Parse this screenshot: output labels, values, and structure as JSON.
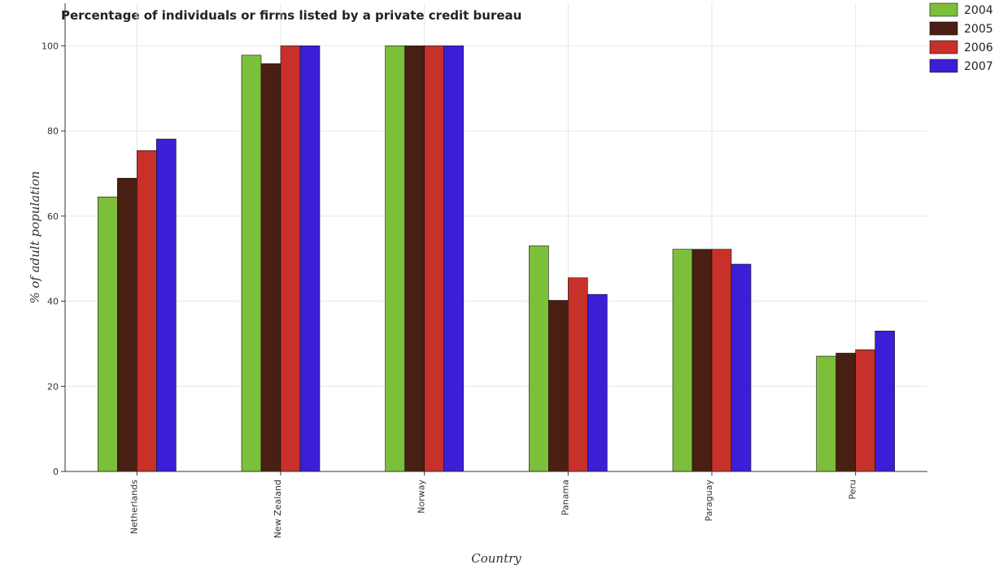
{
  "chart_data": {
    "type": "bar",
    "title": "Percentage of individuals or firms listed by a private credit bureau",
    "xlabel": "Country",
    "ylabel": "% of adult population",
    "ylim": [
      0,
      110
    ],
    "yticks": [
      0,
      20,
      40,
      60,
      80,
      100
    ],
    "grid": true,
    "legend_position": "top-right",
    "categories": [
      "Netherlands",
      "New Zealand",
      "Norway",
      "Panama",
      "Paraguay",
      "Peru"
    ],
    "series": [
      {
        "name": "2004",
        "color": "#7cbf3a",
        "values": [
          64.5,
          97.8,
          100,
          53.0,
          52.2,
          27.1
        ]
      },
      {
        "name": "2005",
        "color": "#4a1f13",
        "values": [
          68.9,
          95.8,
          100,
          40.2,
          52.2,
          27.8
        ]
      },
      {
        "name": "2006",
        "color": "#c8312a",
        "values": [
          75.4,
          100,
          100,
          45.5,
          52.2,
          28.6
        ]
      },
      {
        "name": "2007",
        "color": "#3a1fd6",
        "values": [
          78.1,
          100,
          100,
          41.6,
          48.7,
          33.0
        ]
      }
    ]
  }
}
